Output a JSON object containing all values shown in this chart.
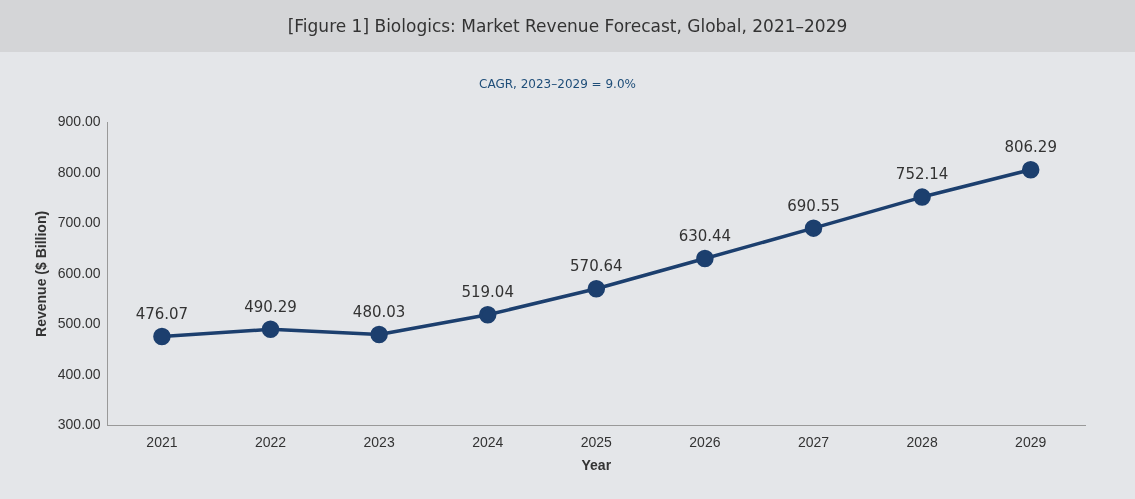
{
  "chart_data": {
    "type": "line",
    "title": "[Figure 1] Biologics: Market Revenue Forecast, Global, 2021–2029",
    "subtitle": "CAGR, 2023–2029 = 9.0%",
    "xlabel": "Year",
    "ylabel": "Revenue ($ Billion)",
    "categories": [
      "2021",
      "2022",
      "2023",
      "2024",
      "2025",
      "2026",
      "2027",
      "2028",
      "2029"
    ],
    "series": [
      {
        "color": "#1c3f6e",
        "values": [
          476.07,
          490.29,
          480.03,
          519.04,
          570.64,
          630.44,
          690.55,
          752.14,
          806.29
        ]
      }
    ],
    "ylim": [
      300,
      900
    ],
    "yticks": [
      {
        "value": 300,
        "label": "300.00"
      },
      {
        "value": 400,
        "label": "400.00"
      },
      {
        "value": 500,
        "label": "500.00"
      },
      {
        "value": 600,
        "label": "600.00"
      },
      {
        "value": 700,
        "label": "700.00"
      },
      {
        "value": 800,
        "label": "800.00"
      },
      {
        "value": 900,
        "label": "900.00"
      }
    ],
    "grid": false,
    "legend": false,
    "marker": "circle",
    "line_style": "solid",
    "data_labels": true
  }
}
